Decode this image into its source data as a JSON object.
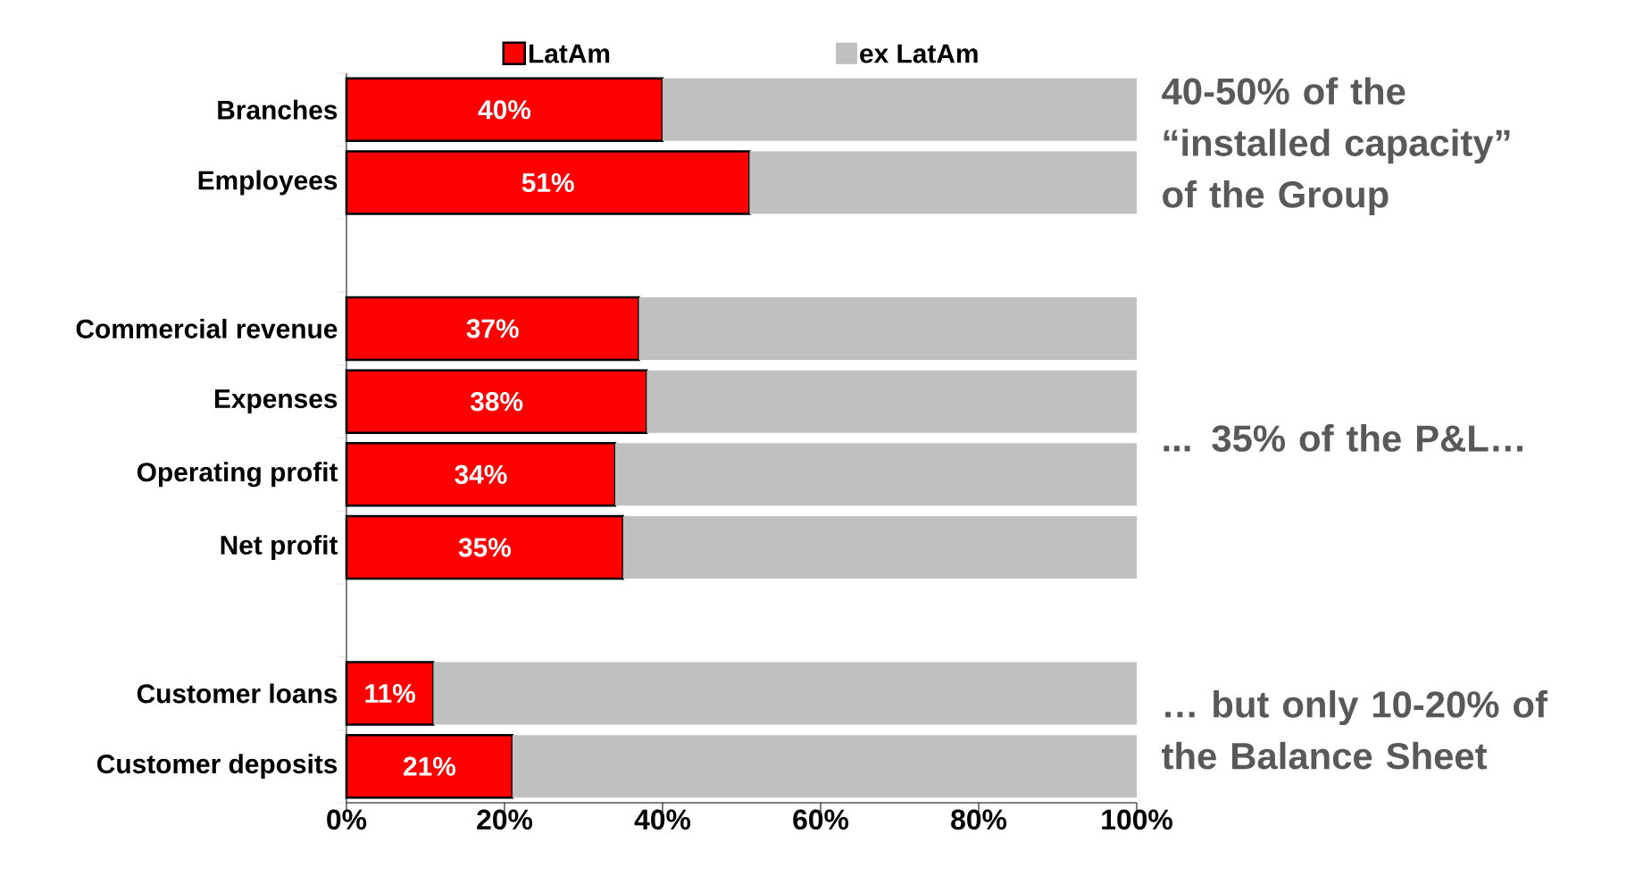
{
  "chart_data": {
    "type": "bar",
    "orientation": "horizontal",
    "stacked": true,
    "legend": "top",
    "categories": [
      "Branches",
      "Employees",
      null,
      "Commercial revenue",
      "Expenses",
      "Operating profit",
      "Net profit",
      null,
      "Customer loans",
      "Customer deposits"
    ],
    "series": [
      {
        "name": "LatAm",
        "color": "#ff0000",
        "values": [
          40,
          51,
          null,
          37,
          38,
          34,
          35,
          null,
          11,
          21
        ],
        "value_labels": [
          "40%",
          "51%",
          null,
          "37%",
          "38%",
          "34%",
          "35%",
          null,
          "11%",
          "21%"
        ]
      },
      {
        "name": "ex LatAm",
        "color": "#c0c0c0",
        "values": [
          60,
          49,
          null,
          63,
          62,
          66,
          65,
          null,
          89,
          79
        ]
      }
    ],
    "xlim": [
      0,
      100
    ],
    "xticks": [
      {
        "value": 0,
        "label": "0%"
      },
      {
        "value": 20,
        "label": "20%"
      },
      {
        "value": 40,
        "label": "40%"
      },
      {
        "value": 60,
        "label": "60%"
      },
      {
        "value": 80,
        "label": "80%"
      },
      {
        "value": 100,
        "label": "100%"
      }
    ],
    "annotations": [
      "40-50% of the “installed capacity” of the Group",
      "... 35% of the P&L…",
      "… but only 10-20% of the Balance Sheet"
    ]
  }
}
